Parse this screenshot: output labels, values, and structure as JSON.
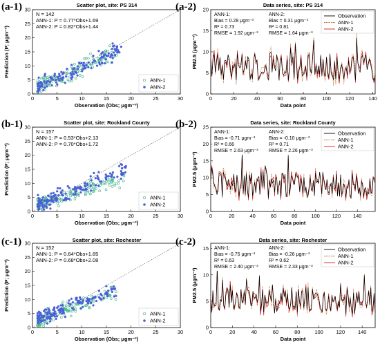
{
  "colors": {
    "ann1": "#3fb08c",
    "ann2": "#4a5fd6",
    "obs": "#000000",
    "ann1_line": "#b5651d",
    "ann2_line": "#d02020"
  },
  "rows": [
    {
      "left": {
        "label": "(a-1)",
        "title": "Scatter plot, site: PS 314",
        "n_text": "N = 142",
        "fit1": "ANN-1: P = 0.77*Obs+1.69",
        "fit2": "ANN-2: P = 0.82*Obs+1.44",
        "xlabel": "Observation (Obs; μgm⁻³)",
        "ylabel": "Prediction (P; μgm⁻³)",
        "legend": [
          "ANN-1",
          "ANN-2"
        ],
        "xticks": [
          "0",
          "5",
          "10",
          "15",
          "20",
          "25",
          "30"
        ],
        "yticks": [
          "0",
          "5",
          "10",
          "15",
          "20",
          "25",
          "30"
        ]
      },
      "right": {
        "label": "(a-2)",
        "title": "Data series, site: PS 314",
        "ann1_head": "ANN-1:",
        "ann1_bias": "Bias = 0.28 μgm⁻³",
        "ann1_r2": "R² = 0.73",
        "ann1_rmse": "RMSE = 1.92 μgm⁻³",
        "ann2_head": "ANN-2:",
        "ann2_bias": "Bias = 0.31 μgm⁻³",
        "ann2_r2": "R² = 0.81",
        "ann2_rmse": "RMSE = 1.64 μgm⁻³",
        "legend": [
          "Observation",
          "ANN-1",
          "ANN-2"
        ],
        "xlabel": "Data point",
        "ylabel": "PM2.5 (μgm⁻³)",
        "xticks": [
          "0",
          "20",
          "40",
          "60",
          "80",
          "100",
          "120",
          "140"
        ],
        "yticks": [
          "0",
          "5",
          "10",
          "15",
          "20"
        ]
      }
    },
    {
      "left": {
        "label": "(b-1)",
        "title": "Scatter plot, site: Rockland County",
        "n_text": "N = 157",
        "fit1": "ANN-1: P = 0.53*Obs+2.13",
        "fit2": "ANN-2: P = 0.70*Obs+1.72",
        "xlabel": "Observation (Obs; μgm⁻³)",
        "ylabel": "Prediction (P; μgm⁻³)",
        "legend": [
          "ANN-1",
          "ANN-2"
        ],
        "xticks": [
          "0",
          "5",
          "10",
          "15",
          "20",
          "25",
          "30"
        ],
        "yticks": [
          "0",
          "5",
          "10",
          "15",
          "20",
          "25",
          "30"
        ]
      },
      "right": {
        "label": "(b-2)",
        "title": "Data series, site: Rockland County",
        "ann1_head": "ANN-1:",
        "ann1_bias": "Bias = -0.71 μgm⁻³",
        "ann1_r2": "R² = 0.66",
        "ann1_rmse": "RMSE = 2.63 μgm⁻³",
        "ann2_head": "ANN-2:",
        "ann2_bias": "Bias = -0.10 μgm⁻³",
        "ann2_r2": "R² = 0.71",
        "ann2_rmse": "RMSE = 2.26 μgm⁻³",
        "legend": [
          "Observation",
          "ANN-1",
          "ANN-2"
        ],
        "xlabel": "Data point",
        "ylabel": "PM2.5 (μgm⁻³)",
        "xticks": [
          "0",
          "20",
          "40",
          "60",
          "80",
          "100",
          "120",
          "140"
        ],
        "yticks": [
          "0",
          "5",
          "10",
          "15",
          "20",
          "25"
        ]
      }
    },
    {
      "left": {
        "label": "(c-1)",
        "title": "Scatter plot, site: Rochester",
        "n_text": "N = 152",
        "fit1": "ANN-1: P = 0.64*Obs+1.85",
        "fit2": "ANN-2: P = 0.68*Obs+2.08",
        "xlabel": "Observation (Obs; μgm⁻³)",
        "ylabel": "Prediction (P; μgm⁻³)",
        "legend": [
          "ANN-1",
          "ANN-2"
        ],
        "xticks": [
          "0",
          "5",
          "10",
          "15",
          "20",
          "25",
          "30"
        ],
        "yticks": [
          "0",
          "5",
          "10",
          "15",
          "20",
          "25",
          "30"
        ]
      },
      "right": {
        "label": "(c-2)",
        "title": "Data series, site: Rochester",
        "ann1_head": "ANN-1:",
        "ann1_bias": "Bias = -0.75 μgm⁻³",
        "ann1_r2": "R² = 0.63",
        "ann1_rmse": "RMSE = 2.40 μgm⁻³",
        "ann2_head": "ANN-2:",
        "ann2_bias": "Bias = -0.26 μgm⁻³",
        "ann2_r2": "R² = 0.62",
        "ann2_rmse": "RMSE = 2.33 μgm⁻³",
        "legend": [
          "Observation",
          "ANN-1",
          "ANN-2"
        ],
        "xlabel": "Data point",
        "ylabel": "PM2.5 (μgm⁻³)",
        "xticks": [
          "0",
          "20",
          "40",
          "60",
          "80",
          "100",
          "120",
          "140"
        ],
        "yticks": [
          "0",
          "5",
          "10",
          "15"
        ]
      }
    }
  ],
  "chart_data": [
    {
      "type": "scatter",
      "title": "Scatter plot, site: PS 314",
      "xlabel": "Observation (Obs; μgm⁻³)",
      "ylabel": "Prediction (P; μgm⁻³)",
      "xlim": [
        0,
        30
      ],
      "ylim": [
        0,
        30
      ],
      "n": 142,
      "series": [
        {
          "name": "ANN-1",
          "slope": 0.77,
          "intercept": 1.69,
          "x_range": [
            1,
            18
          ]
        },
        {
          "name": "ANN-2",
          "slope": 0.82,
          "intercept": 1.44,
          "x_range": [
            1,
            18
          ]
        }
      ],
      "reference_line": "1:1"
    },
    {
      "type": "line",
      "title": "Data series, site: PS 314",
      "xlabel": "Data point",
      "ylabel": "PM2.5 (μgm⁻³)",
      "xlim": [
        0,
        142
      ],
      "ylim": [
        0,
        20
      ],
      "n": 142,
      "series": [
        {
          "name": "Observation"
        },
        {
          "name": "ANN-1"
        },
        {
          "name": "ANN-2"
        }
      ]
    },
    {
      "type": "scatter",
      "title": "Scatter plot, site: Rockland County",
      "xlabel": "Observation (Obs; μgm⁻³)",
      "ylabel": "Prediction (P; μgm⁻³)",
      "xlim": [
        0,
        30
      ],
      "ylim": [
        0,
        30
      ],
      "n": 157,
      "series": [
        {
          "name": "ANN-1",
          "slope": 0.53,
          "intercept": 2.13,
          "x_range": [
            1,
            19
          ]
        },
        {
          "name": "ANN-2",
          "slope": 0.7,
          "intercept": 1.72,
          "x_range": [
            1,
            19
          ]
        }
      ],
      "reference_line": "1:1"
    },
    {
      "type": "line",
      "title": "Data series, site: Rockland County",
      "xlabel": "Data point",
      "ylabel": "PM2.5 (μgm⁻³)",
      "xlim": [
        0,
        157
      ],
      "ylim": [
        0,
        25
      ],
      "n": 157,
      "series": [
        {
          "name": "Observation"
        },
        {
          "name": "ANN-1"
        },
        {
          "name": "ANN-2"
        }
      ]
    },
    {
      "type": "scatter",
      "title": "Scatter plot, site: Rochester",
      "xlabel": "Observation (Obs; μgm⁻³)",
      "ylabel": "Prediction (P; μgm⁻³)",
      "xlim": [
        0,
        30
      ],
      "ylim": [
        0,
        30
      ],
      "n": 152,
      "series": [
        {
          "name": "ANN-1",
          "slope": 0.64,
          "intercept": 1.85,
          "x_range": [
            1,
            17
          ]
        },
        {
          "name": "ANN-2",
          "slope": 0.68,
          "intercept": 2.08,
          "x_range": [
            1,
            17
          ]
        }
      ],
      "reference_line": "1:1"
    },
    {
      "type": "line",
      "title": "Data series, site: Rochester",
      "xlabel": "Data point",
      "ylabel": "PM2.5 (μgm⁻³)",
      "xlim": [
        0,
        152
      ],
      "ylim": [
        0,
        16
      ],
      "n": 152,
      "series": [
        {
          "name": "Observation"
        },
        {
          "name": "ANN-1"
        },
        {
          "name": "ANN-2"
        }
      ]
    }
  ]
}
